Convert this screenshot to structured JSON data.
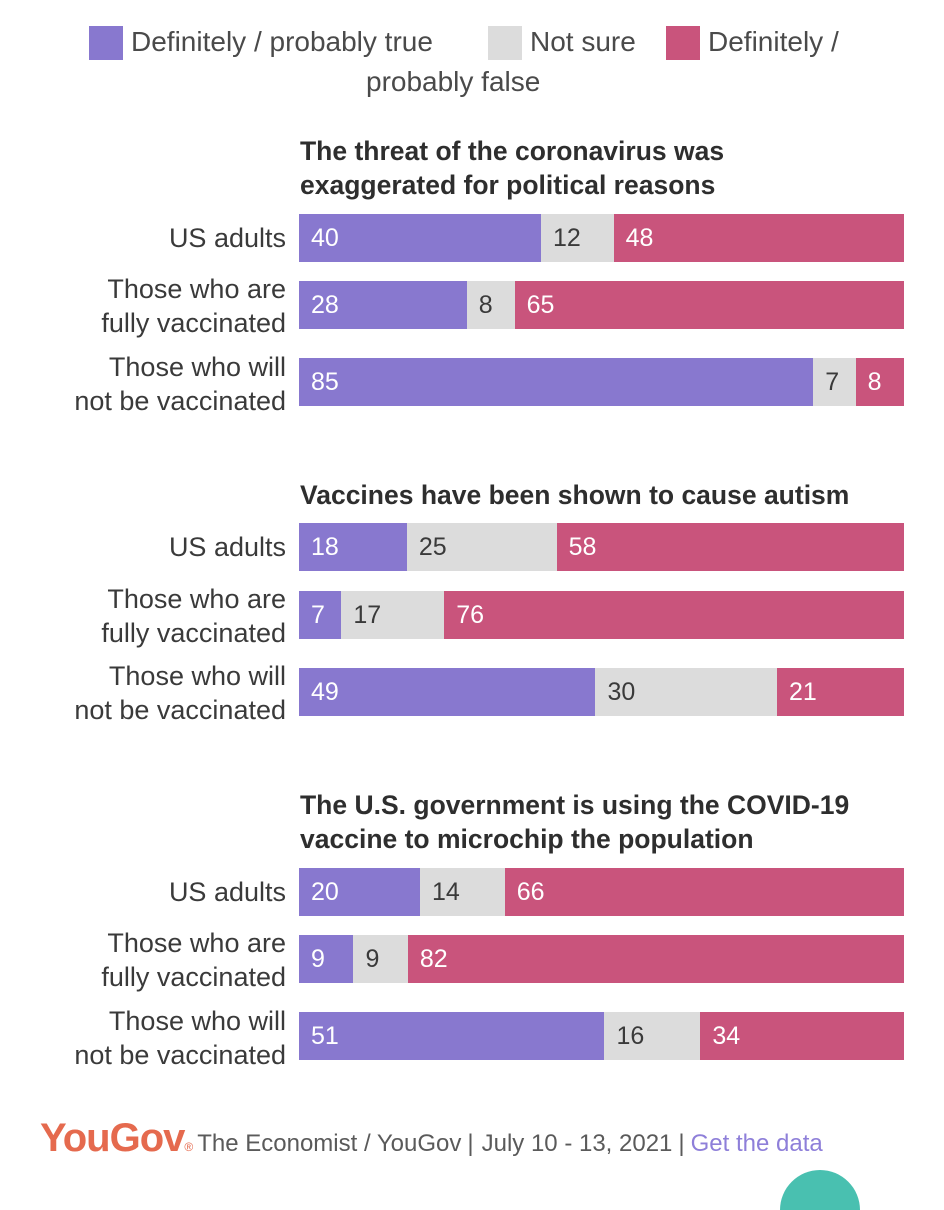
{
  "legend": {
    "items": [
      {
        "label": "Definitely / probably true",
        "color": "#8878cf"
      },
      {
        "label": "Not sure",
        "color": "#dcdcdc"
      },
      {
        "label_line1": "Definitely /",
        "label_line2": "probably false",
        "color": "#c9547c"
      }
    ]
  },
  "chart_data": [
    {
      "type": "bar",
      "stacked": true,
      "orientation": "horizontal",
      "title_line1": "The threat of the coronavirus was",
      "title_line2": "exaggerated for political reasons",
      "categories": [
        [
          "US adults"
        ],
        [
          "Those who are",
          "fully vaccinated"
        ],
        [
          "Those who will",
          "not be vaccinated"
        ]
      ],
      "series": [
        {
          "name": "Definitely / probably true",
          "values": [
            40,
            28,
            85
          ]
        },
        {
          "name": "Not sure",
          "values": [
            12,
            8,
            7
          ]
        },
        {
          "name": "Definitely / probably false",
          "values": [
            48,
            65,
            8
          ]
        }
      ]
    },
    {
      "type": "bar",
      "stacked": true,
      "orientation": "horizontal",
      "title_line1": "Vaccines have been shown to cause autism",
      "title_line2": "",
      "categories": [
        [
          "US adults"
        ],
        [
          "Those who are",
          "fully vaccinated"
        ],
        [
          "Those who will",
          "not be vaccinated"
        ]
      ],
      "series": [
        {
          "name": "Definitely / probably true",
          "values": [
            18,
            7,
            49
          ]
        },
        {
          "name": "Not sure",
          "values": [
            25,
            17,
            30
          ]
        },
        {
          "name": "Definitely / probably false",
          "values": [
            58,
            76,
            21
          ]
        }
      ]
    },
    {
      "type": "bar",
      "stacked": true,
      "orientation": "horizontal",
      "title_line1": "The U.S. government is using the COVID-19",
      "title_line2": "vaccine to microchip the population",
      "categories": [
        [
          "US adults"
        ],
        [
          "Those who are",
          "fully vaccinated"
        ],
        [
          "Those who will",
          "not be vaccinated"
        ]
      ],
      "series": [
        {
          "name": "Definitely / probably true",
          "values": [
            20,
            9,
            51
          ]
        },
        {
          "name": "Not sure",
          "values": [
            14,
            9,
            16
          ]
        },
        {
          "name": "Definitely / probably false",
          "values": [
            66,
            82,
            34
          ]
        }
      ]
    }
  ],
  "footer": {
    "brand": "YouGov",
    "brand_mark": "®",
    "source": "The Economist / YouGov",
    "separator": "|",
    "dates": "July 10 - 13, 2021",
    "link": "Get the data"
  }
}
